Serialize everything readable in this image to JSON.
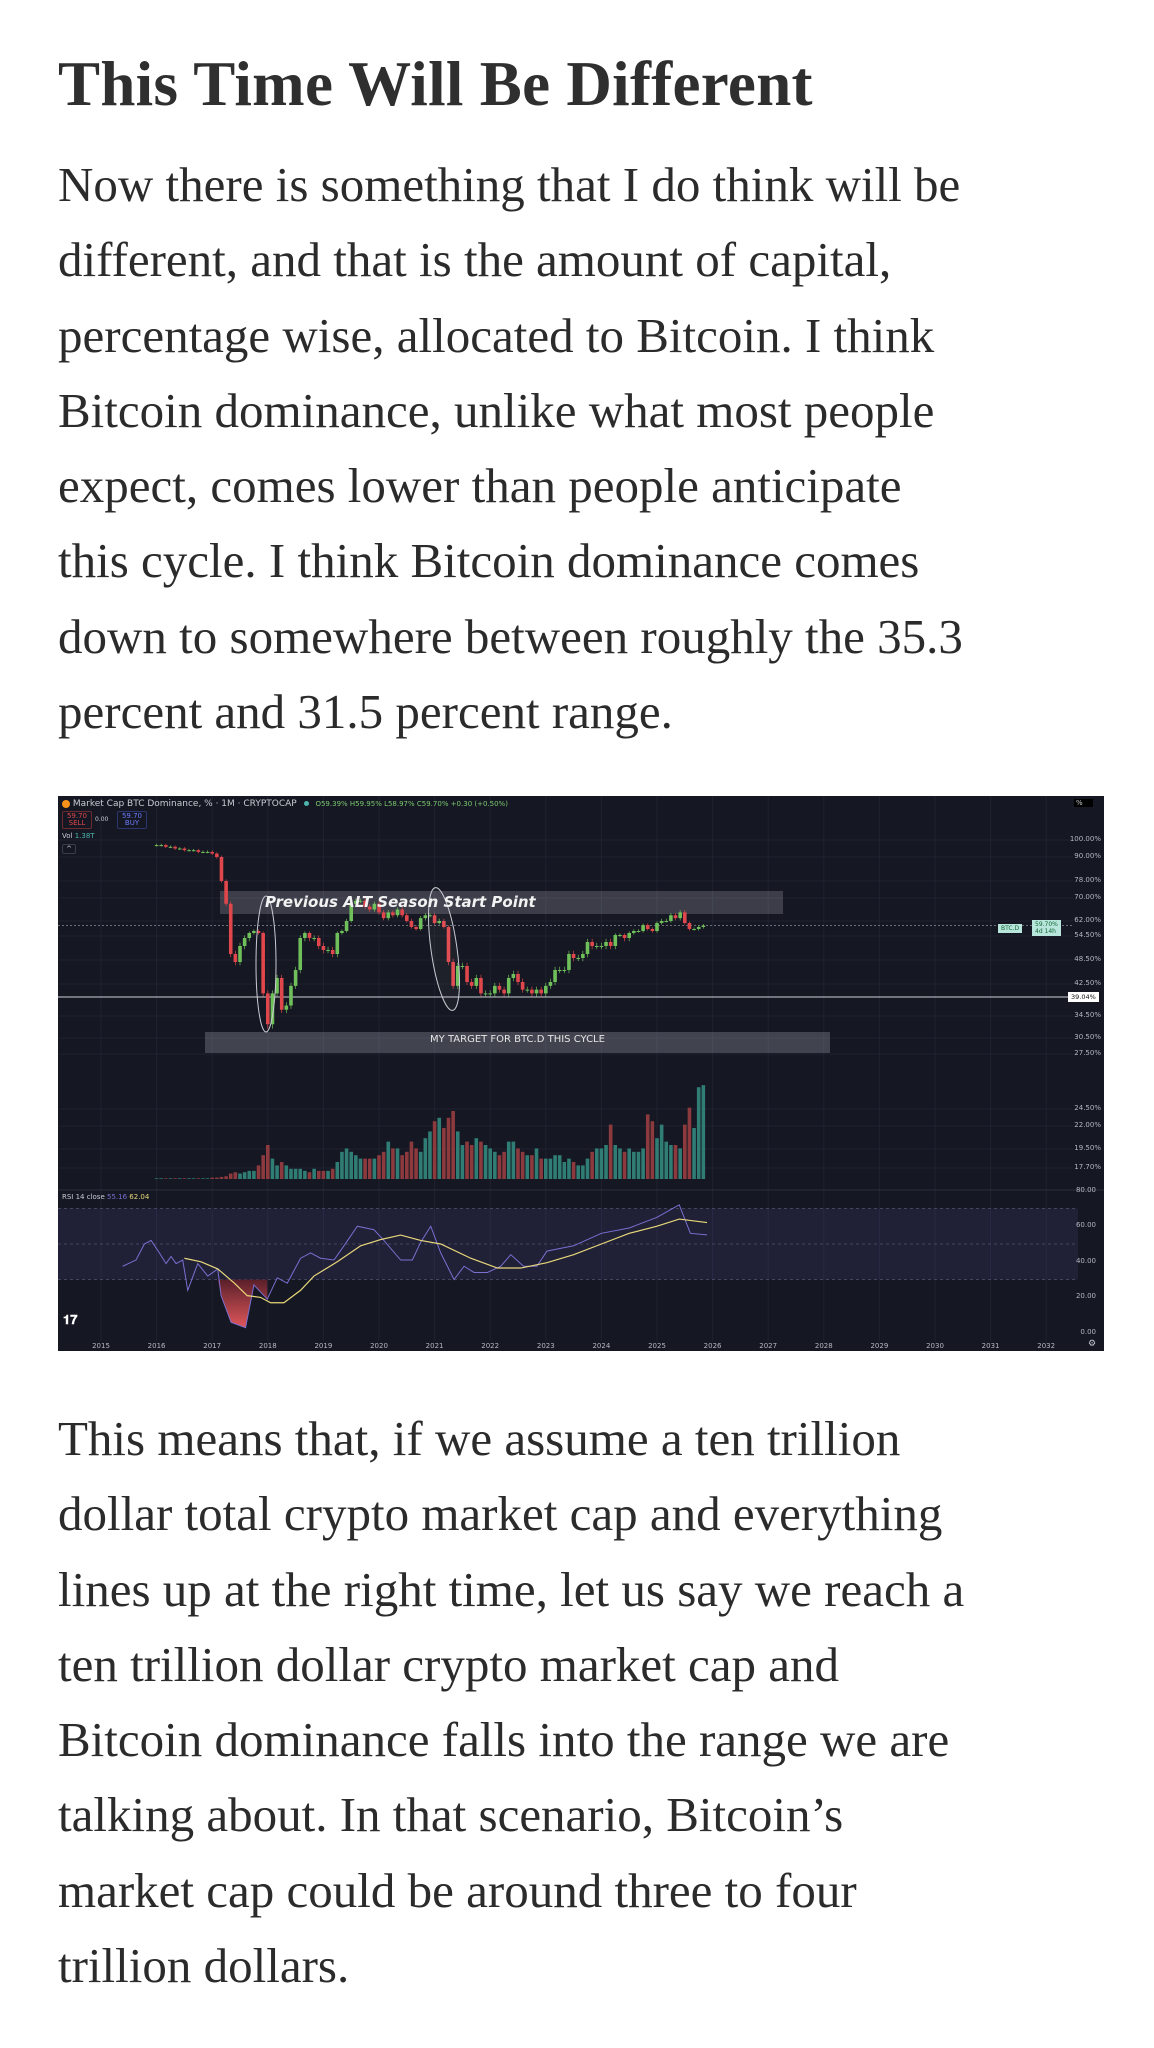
{
  "article": {
    "title": "This Time Will Be Different",
    "paragraph1_lines": [
      "Now there is something that I do think will be",
      "different, and that is the amount of capital,",
      "percentage wise, allocated to Bitcoin. I think",
      "Bitcoin dominance, unlike what most people",
      "expect, comes lower than people anticipate",
      "this cycle. I think Bitcoin dominance comes",
      "down to somewhere between roughly the 35.3",
      "percent and 31.5 percent range."
    ],
    "paragraph2_lines": [
      "This means that, if we assume a ten trillion",
      "dollar total crypto market cap and everything",
      "lines up at the right time, let us say we reach a",
      "ten trillion dollar crypto market cap and",
      "Bitcoin dominance falls into the range we are",
      "talking about. In that scenario, Bitcoin’s",
      "market cap could be around three to four",
      "trillion dollars."
    ]
  },
  "chart_header": {
    "symbol_title": "Market Cap BTC Dominance, % · 1M · CRYPTOCAP",
    "ohlc": "O59.39% H59.95% L58.97% C59.70% +0.30 (+0.50%)",
    "sell_price": "59.70",
    "sell_label": "SELL",
    "spread": "0.00",
    "buy_price": "59.70",
    "buy_label": "BUY",
    "vol_label": "Vol",
    "vol_value": "1.38T",
    "axis_unit": "%",
    "price_tag_symbol": "BTC.D",
    "price_tag_value": "59.70%",
    "price_tag_countdown": "4d 14h",
    "level_tag": "39.04%",
    "rsi_label": "RSI 14 close",
    "rsi_value": "55.16",
    "rsi_ma_value": "62.04",
    "logo": "TV"
  },
  "annotations": {
    "alt_season": "Previous ALT Season Start Point",
    "target": "MY TARGET FOR BTC.D THIS CYCLE"
  },
  "colors": {
    "up": "#6fbf5a",
    "down": "#e0474c",
    "vol_up": "#2f7d74",
    "vol_down": "#8c3a3e",
    "rsi": "#7b6fd0",
    "rsi_ma": "#e8d87a",
    "background": "#151722"
  },
  "chart_data": {
    "type": "candlestick",
    "title": "Market Cap BTC Dominance, % · 1M · CRYPTOCAP",
    "y_scale": "nonlinear (percent)",
    "y_ticks": [
      "100.00%",
      "90.00%",
      "78.00%",
      "70.00%",
      "62.00%",
      "54.50%",
      "48.50%",
      "42.50%",
      "34.50%",
      "30.50%",
      "27.50%",
      "24.50%",
      "22.00%",
      "19.50%",
      "17.70%"
    ],
    "x_ticks": [
      "2015",
      "2016",
      "2017",
      "2018",
      "2019",
      "2020",
      "2021",
      "2022",
      "2023",
      "2024",
      "2025",
      "2026",
      "2027",
      "2028",
      "2029",
      "2030",
      "2031",
      "2032"
    ],
    "start_month": "2016-01",
    "monthly_close": [
      97,
      97,
      96,
      96,
      95,
      95,
      94,
      94,
      94,
      93,
      93,
      93,
      92,
      90,
      78,
      68,
      50,
      48,
      52,
      54,
      56,
      57,
      56,
      40,
      33,
      40,
      44,
      36,
      37,
      42,
      46,
      54,
      56,
      54,
      54,
      52,
      51,
      51,
      50,
      56,
      57,
      62,
      68,
      69,
      69,
      67,
      66,
      68,
      65,
      63,
      65,
      64,
      66,
      64,
      62,
      59,
      58,
      63,
      64,
      64,
      61,
      62,
      59,
      48,
      42,
      47,
      47,
      43,
      42,
      44,
      40,
      40,
      40,
      42,
      41,
      40,
      44,
      45,
      43,
      41,
      41,
      40,
      41,
      40,
      42,
      43,
      46,
      46,
      46,
      50,
      49,
      49,
      50,
      53,
      52,
      52,
      52,
      53,
      52,
      55,
      55,
      54,
      56,
      57,
      57,
      60,
      58,
      57,
      61,
      62,
      62,
      64,
      63,
      65,
      61,
      58,
      58,
      59,
      59.7
    ],
    "monthly_volume_T": [
      0.01,
      0.01,
      0.01,
      0.01,
      0.01,
      0.01,
      0.01,
      0.01,
      0.01,
      0.01,
      0.01,
      0.01,
      0.02,
      0.02,
      0.03,
      0.04,
      0.08,
      0.1,
      0.08,
      0.1,
      0.12,
      0.12,
      0.2,
      0.35,
      0.5,
      0.3,
      0.2,
      0.25,
      0.2,
      0.15,
      0.15,
      0.15,
      0.12,
      0.1,
      0.15,
      0.12,
      0.12,
      0.12,
      0.15,
      0.25,
      0.4,
      0.45,
      0.4,
      0.35,
      0.3,
      0.3,
      0.3,
      0.3,
      0.35,
      0.4,
      0.55,
      0.45,
      0.45,
      0.35,
      0.4,
      0.55,
      0.45,
      0.4,
      0.6,
      0.7,
      0.85,
      0.9,
      0.75,
      0.9,
      1.0,
      0.7,
      0.5,
      0.55,
      0.5,
      0.6,
      0.55,
      0.5,
      0.45,
      0.4,
      0.35,
      0.4,
      0.55,
      0.55,
      0.45,
      0.4,
      0.35,
      0.35,
      0.45,
      0.3,
      0.3,
      0.3,
      0.35,
      0.35,
      0.25,
      0.3,
      0.25,
      0.2,
      0.2,
      0.3,
      0.4,
      0.45,
      0.45,
      0.5,
      0.8,
      0.5,
      0.45,
      0.4,
      0.45,
      0.4,
      0.4,
      0.45,
      0.95,
      0.85,
      0.6,
      0.8,
      0.55,
      0.5,
      0.5,
      0.45,
      0.8,
      1.05,
      0.75,
      1.35,
      1.38
    ],
    "current_value": 59.7,
    "horizontal_level": 39.04,
    "rsi": {
      "ylim": [
        0,
        80
      ],
      "y_ticks": [
        "80.00",
        "60.00",
        "40.00",
        "20.00",
        "0.00"
      ],
      "band": [
        30,
        70
      ],
      "series": [
        [
          2015.39,
          37.5
        ],
        [
          2015.63,
          41
        ],
        [
          2015.78,
          50
        ],
        [
          2015.9,
          52
        ],
        [
          2016.05,
          45
        ],
        [
          2016.17,
          39
        ],
        [
          2016.26,
          43
        ],
        [
          2016.35,
          39
        ],
        [
          2016.47,
          41
        ],
        [
          2016.56,
          24
        ],
        [
          2016.74,
          39
        ],
        [
          2016.92,
          32
        ],
        [
          2017.1,
          36
        ],
        [
          2017.16,
          21
        ],
        [
          2017.34,
          6
        ],
        [
          2017.6,
          3
        ],
        [
          2017.75,
          27
        ],
        [
          2017.99,
          19
        ],
        [
          2018.17,
          31
        ],
        [
          2018.35,
          28
        ],
        [
          2018.59,
          42
        ],
        [
          2018.77,
          45
        ],
        [
          2018.95,
          42
        ],
        [
          2019.19,
          41
        ],
        [
          2019.37,
          49
        ],
        [
          2019.61,
          60
        ],
        [
          2019.91,
          58
        ],
        [
          2020.06,
          53
        ],
        [
          2020.39,
          41
        ],
        [
          2020.6,
          41
        ],
        [
          2020.75,
          51
        ],
        [
          2020.93,
          60
        ],
        [
          2021.11,
          45
        ],
        [
          2021.35,
          30
        ],
        [
          2021.53,
          37.5
        ],
        [
          2021.71,
          34
        ],
        [
          2021.95,
          34
        ],
        [
          2022.19,
          37.5
        ],
        [
          2022.37,
          44
        ],
        [
          2022.6,
          37.5
        ],
        [
          2022.84,
          37.5
        ],
        [
          2023.02,
          46
        ],
        [
          2023.5,
          49
        ],
        [
          2024.0,
          56
        ],
        [
          2024.5,
          59
        ],
        [
          2025.0,
          65
        ],
        [
          2025.4,
          72
        ],
        [
          2025.6,
          56
        ],
        [
          2025.9,
          55.16
        ]
      ],
      "ma": [
        [
          2016.5,
          42
        ],
        [
          2016.8,
          40
        ],
        [
          2017.1,
          36
        ],
        [
          2017.4,
          28
        ],
        [
          2017.63,
          21
        ],
        [
          2017.87,
          20
        ],
        [
          2018.05,
          17
        ],
        [
          2018.29,
          17
        ],
        [
          2018.59,
          24
        ],
        [
          2018.83,
          32
        ],
        [
          2019.25,
          40
        ],
        [
          2019.67,
          49
        ],
        [
          2020.03,
          52.5
        ],
        [
          2020.39,
          55
        ],
        [
          2020.75,
          52
        ],
        [
          2021.11,
          50
        ],
        [
          2021.65,
          42
        ],
        [
          2022.13,
          36.5
        ],
        [
          2022.55,
          36.5
        ],
        [
          2023.02,
          39.5
        ],
        [
          2023.5,
          44
        ],
        [
          2024.0,
          50
        ],
        [
          2024.5,
          56
        ],
        [
          2025.0,
          60
        ],
        [
          2025.4,
          64
        ],
        [
          2025.9,
          62.04
        ]
      ]
    }
  }
}
